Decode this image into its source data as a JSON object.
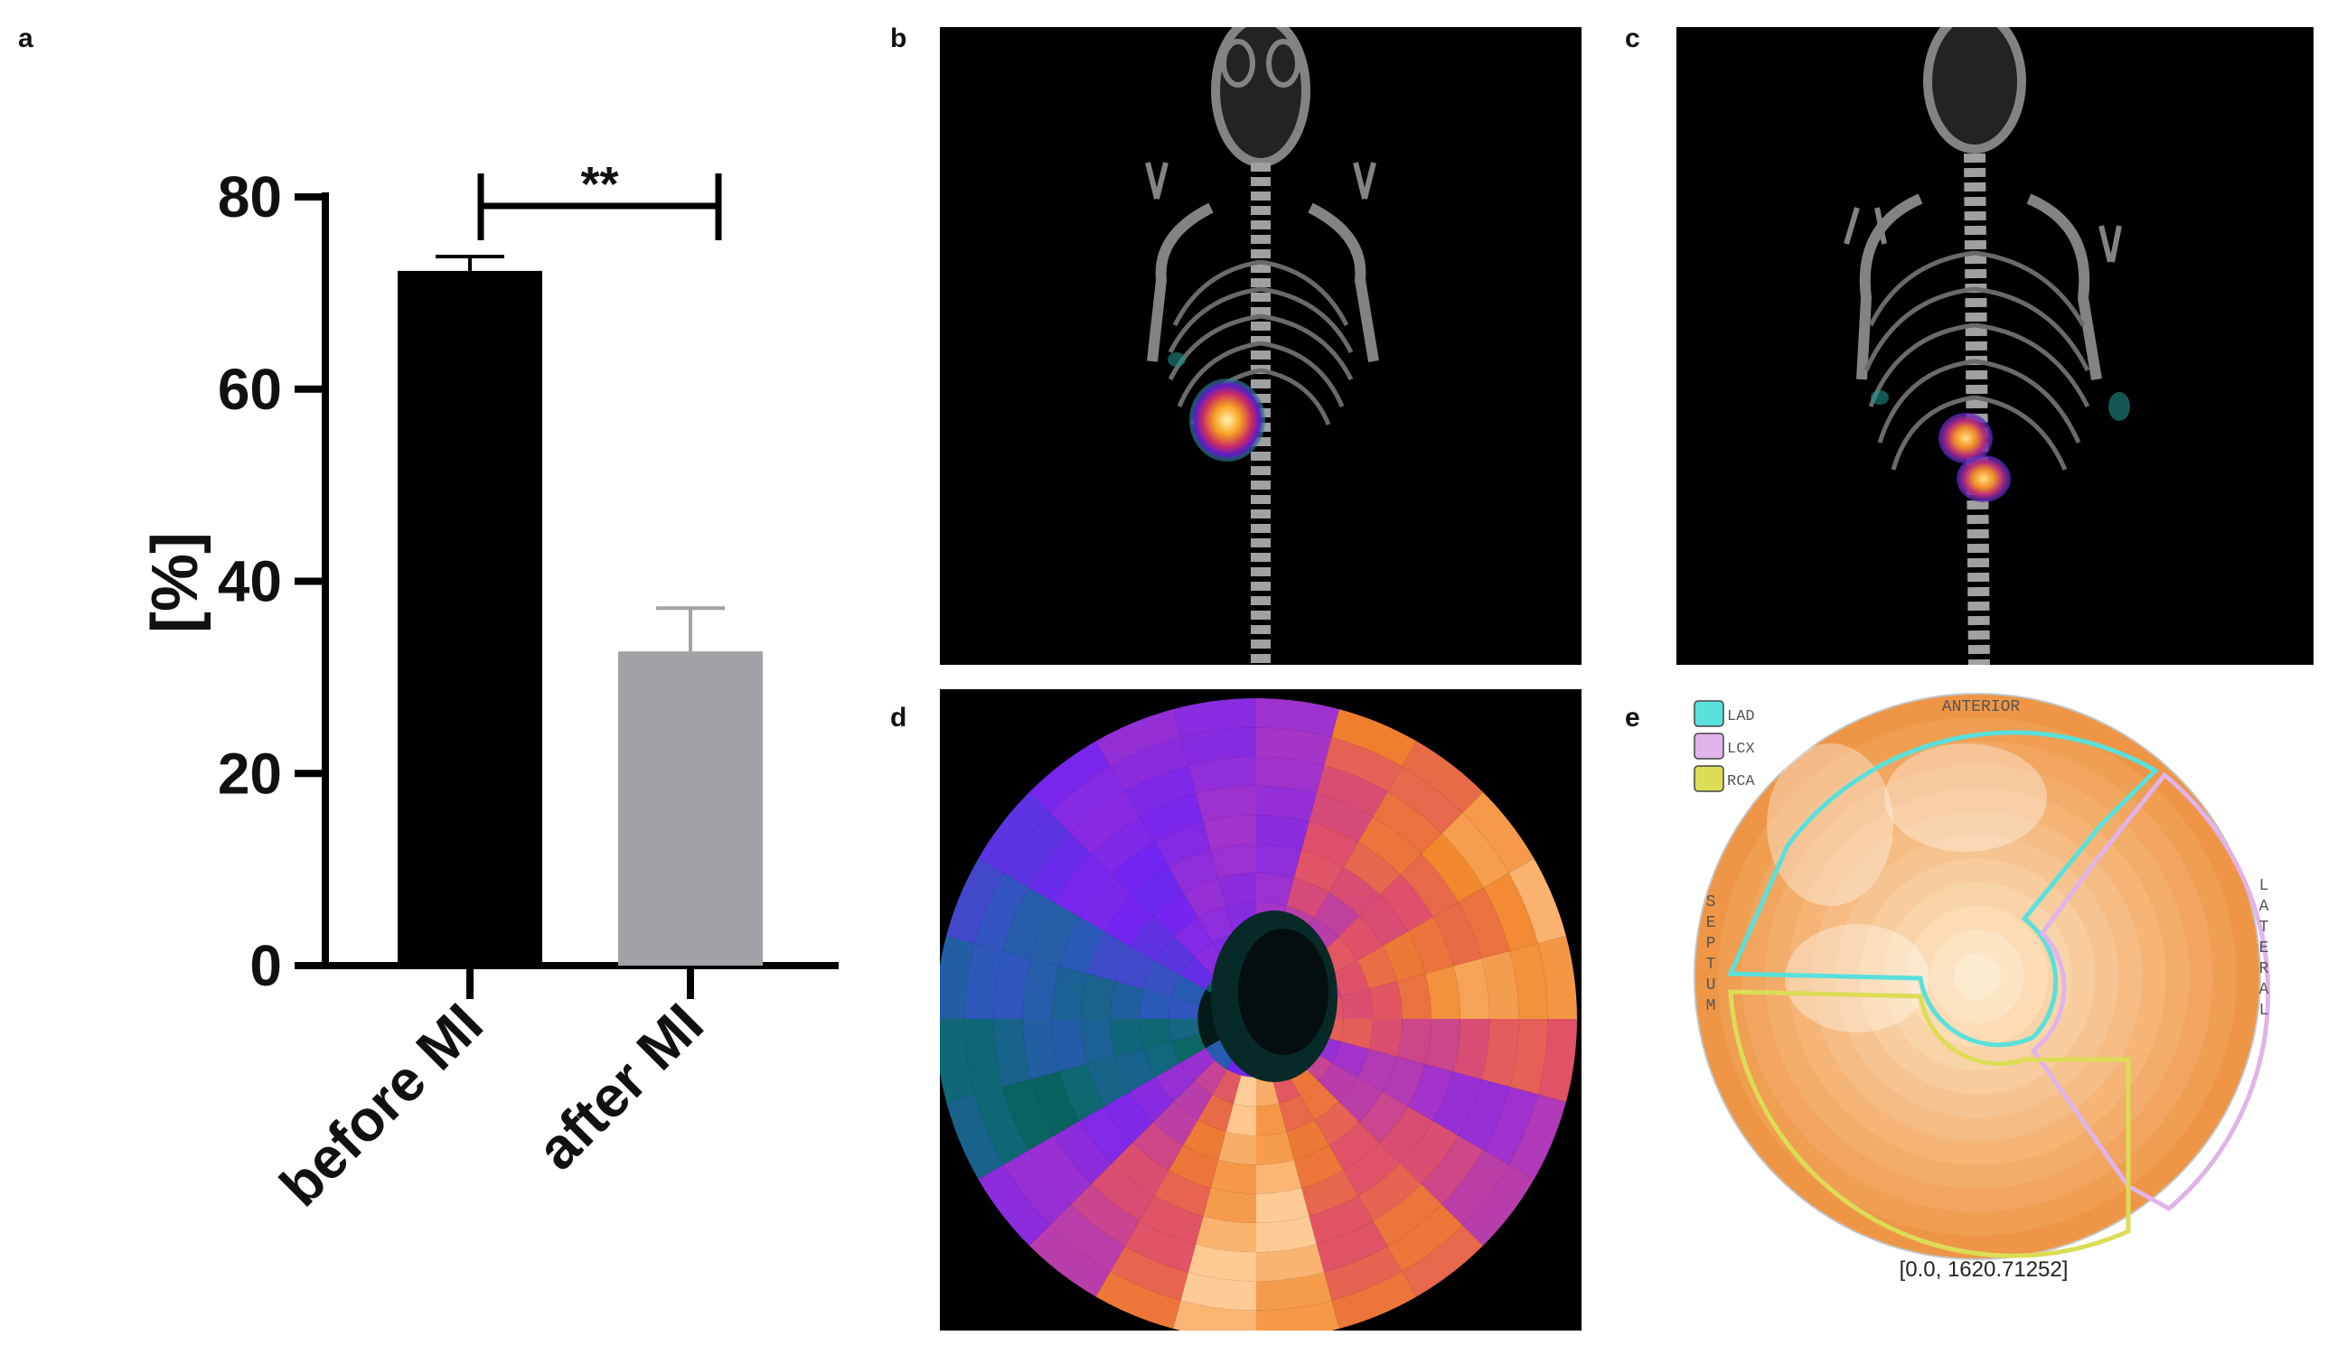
{
  "panel_labels": {
    "a": "a",
    "b": "b",
    "c": "c",
    "d": "d",
    "e": "e"
  },
  "chart_data": {
    "type": "bar",
    "title": "",
    "xlabel": "",
    "ylabel": "[%]",
    "ylim": [
      0,
      80
    ],
    "yticks": [
      0,
      20,
      40,
      60,
      80
    ],
    "ytick_labels": [
      "0",
      "20",
      "40",
      "60",
      "80"
    ],
    "categories": [
      "before MI",
      "after MI"
    ],
    "values": [
      72.3,
      32.7
    ],
    "errors": [
      1.5,
      4.5
    ],
    "bar_colors": [
      "#000000",
      "#a2a2a6"
    ],
    "significance": {
      "from": 0,
      "to": 1,
      "label": "**"
    }
  },
  "polar_map_e": {
    "legend": [
      {
        "label": "LAD",
        "color": "#59e0dc"
      },
      {
        "label": "LCX",
        "color": "#e1b3ea"
      },
      {
        "label": "RCA",
        "color": "#dcdc56"
      }
    ],
    "anterior_label": "ANTERIOR",
    "septum_label": "SEPTUM",
    "lateral_label": "LATERAL",
    "range_label": "[0.0, 1620.71252]"
  }
}
